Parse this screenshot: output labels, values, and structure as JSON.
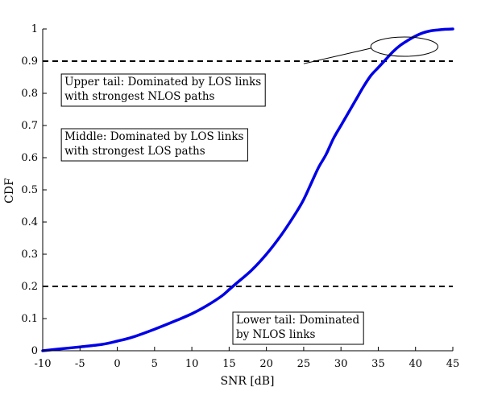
{
  "chart_data": {
    "type": "line",
    "xlabel": "SNR [dB]",
    "ylabel": "CDF",
    "xlim": [
      -10,
      45
    ],
    "ylim": [
      0,
      1
    ],
    "xticks": [
      -10,
      -5,
      0,
      5,
      10,
      15,
      20,
      25,
      30,
      35,
      40,
      45
    ],
    "yticks": [
      0,
      0.1,
      0.2,
      0.3,
      0.4,
      0.5,
      0.6,
      0.7,
      0.8,
      0.9,
      1
    ],
    "ytick_labels": [
      "0",
      "0.1",
      "0.2",
      "0.3",
      "0.4",
      "0.5",
      "0.6",
      "0.7",
      "0.8",
      "0.9",
      "1"
    ],
    "grid": false,
    "series": [
      {
        "color": "#0000e6",
        "x": [
          -10,
          -8,
          -5,
          -2,
          0,
          2,
          5,
          8,
          10,
          12,
          14,
          15,
          16,
          18,
          20,
          22,
          24,
          25,
          26,
          27,
          28,
          29,
          30,
          31,
          32,
          33,
          34,
          35,
          36,
          37,
          38,
          39,
          40,
          41,
          42,
          43,
          44,
          45
        ],
        "y": [
          0.0,
          0.005,
          0.012,
          0.02,
          0.03,
          0.042,
          0.067,
          0.095,
          0.115,
          0.14,
          0.17,
          0.19,
          0.21,
          0.25,
          0.3,
          0.36,
          0.43,
          0.47,
          0.52,
          0.57,
          0.61,
          0.66,
          0.7,
          0.74,
          0.78,
          0.82,
          0.855,
          0.88,
          0.905,
          0.93,
          0.95,
          0.965,
          0.978,
          0.988,
          0.994,
          0.997,
          0.999,
          1.0
        ]
      }
    ],
    "reference_lines": [
      {
        "y": 0.9,
        "style": "dashed"
      },
      {
        "y": 0.2,
        "style": "dashed"
      }
    ],
    "annotations": [
      {
        "lines": [
          "Upper tail: Dominated by LOS links",
          "with strongest NLOS paths"
        ],
        "at": [
          -7.5,
          0.86
        ]
      },
      {
        "lines": [
          "Middle: Dominated by LOS links",
          "with strongest LOS paths"
        ],
        "at": [
          -7.5,
          0.69
        ]
      },
      {
        "lines": [
          "Lower tail: Dominated",
          "by NLOS links"
        ],
        "at": [
          15.5,
          0.12
        ]
      }
    ],
    "highlight_ellipse": {
      "center": [
        38.5,
        0.945
      ],
      "rx_data": 4.5,
      "ry_data": 0.03
    },
    "leader_line": {
      "from": [
        25,
        0.892
      ],
      "to": [
        34,
        0.94
      ]
    }
  }
}
